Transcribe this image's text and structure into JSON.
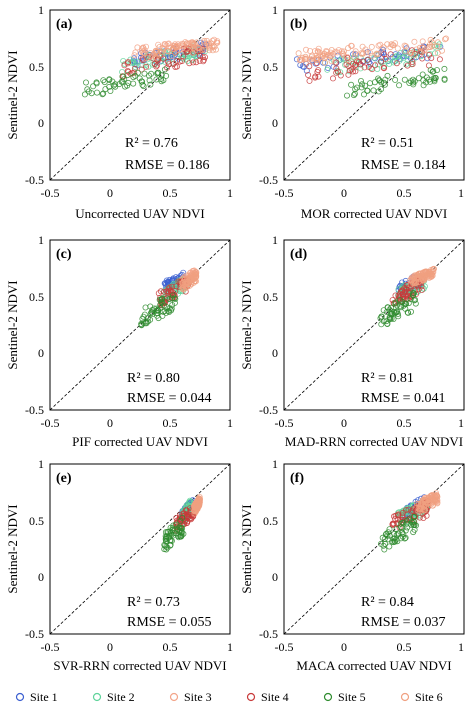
{
  "axes": {
    "ylabel": "Sentinel-2 NDVI",
    "xlim": [
      -0.5,
      1
    ],
    "ylim": [
      -0.5,
      1
    ],
    "xticks": [
      {
        "v": -0.5,
        "t": "-0.5"
      },
      {
        "v": 0,
        "t": "0"
      },
      {
        "v": 0.5,
        "t": "0.5"
      },
      {
        "v": 1,
        "t": "1"
      }
    ],
    "yticks": [
      {
        "v": -0.5,
        "t": "-0.5"
      },
      {
        "v": 0,
        "t": "0"
      },
      {
        "v": 0.5,
        "t": "0.5"
      },
      {
        "v": 1,
        "t": "1"
      }
    ],
    "one_to_one_line": true
  },
  "legend": {
    "placement": "bottom",
    "entries": [
      {
        "label": "Site 1",
        "color": "#3b5fd0"
      },
      {
        "label": "Site 2",
        "color": "#5fd39a"
      },
      {
        "label": "Site 3",
        "color": "#f3a58a"
      },
      {
        "label": "Site 4",
        "color": "#c83a3a"
      },
      {
        "label": "Site 5",
        "color": "#2e8b2e"
      },
      {
        "label": "Site 6",
        "color": "#f0a080"
      }
    ]
  },
  "chart_data": [
    {
      "type": "scatter",
      "panel_label": "(a)",
      "xlabel": "Uncorrected UAV NDVI",
      "ylabel": "Sentinel-2 NDVI",
      "r2_text": "R² = 0.76",
      "rmse_text": "RMSE = 0.186",
      "series": [
        {
          "name": "Site 1",
          "x": [
            0.2,
            0.8
          ],
          "y": [
            0.5,
            0.72
          ]
        },
        {
          "name": "Site 2",
          "x": [
            0.1,
            0.8
          ],
          "y": [
            0.45,
            0.7
          ]
        },
        {
          "name": "Site 3",
          "x": [
            0.2,
            0.9
          ],
          "y": [
            0.6,
            0.75
          ]
        },
        {
          "name": "Site 4",
          "x": [
            0.1,
            0.8
          ],
          "y": [
            0.4,
            0.7
          ]
        },
        {
          "name": "Site 5",
          "x": [
            -0.25,
            0.5
          ],
          "y": [
            0.22,
            0.5
          ]
        },
        {
          "name": "Site 6",
          "x": [
            0.25,
            0.9
          ],
          "y": [
            0.55,
            0.75
          ]
        }
      ]
    },
    {
      "type": "scatter",
      "panel_label": "(b)",
      "xlabel": "MOR corrected UAV NDVI",
      "ylabel": "Sentinel-2 NDVI",
      "r2_text": "R² = 0.51",
      "rmse_text": "RMSE = 0.184",
      "series": [
        {
          "name": "Site 1",
          "x": [
            -0.4,
            0.85
          ],
          "y": [
            0.45,
            0.72
          ]
        },
        {
          "name": "Site 2",
          "x": [
            -0.2,
            0.8
          ],
          "y": [
            0.4,
            0.7
          ]
        },
        {
          "name": "Site 3",
          "x": [
            -0.4,
            0.85
          ],
          "y": [
            0.55,
            0.75
          ]
        },
        {
          "name": "Site 4",
          "x": [
            -0.3,
            0.8
          ],
          "y": [
            0.35,
            0.7
          ]
        },
        {
          "name": "Site 5",
          "x": [
            0.0,
            0.85
          ],
          "y": [
            0.22,
            0.5
          ]
        },
        {
          "name": "Site 6",
          "x": [
            -0.4,
            0.85
          ],
          "y": [
            0.5,
            0.75
          ]
        }
      ]
    },
    {
      "type": "scatter",
      "panel_label": "(c)",
      "xlabel": "PIF corrected UAV NDVI",
      "ylabel": "Sentinel-2 NDVI",
      "r2_text": "R² = 0.80",
      "rmse_text": "RMSE = 0.044",
      "series": [
        {
          "name": "Site 1",
          "x": [
            0.45,
            0.62
          ],
          "y": [
            0.55,
            0.72
          ]
        },
        {
          "name": "Site 2",
          "x": [
            0.45,
            0.65
          ],
          "y": [
            0.45,
            0.7
          ]
        },
        {
          "name": "Site 3",
          "x": [
            0.6,
            0.72
          ],
          "y": [
            0.58,
            0.75
          ]
        },
        {
          "name": "Site 4",
          "x": [
            0.4,
            0.65
          ],
          "y": [
            0.4,
            0.68
          ]
        },
        {
          "name": "Site 5",
          "x": [
            0.26,
            0.55
          ],
          "y": [
            0.22,
            0.55
          ]
        },
        {
          "name": "Site 6",
          "x": [
            0.6,
            0.72
          ],
          "y": [
            0.55,
            0.72
          ]
        }
      ]
    },
    {
      "type": "scatter",
      "panel_label": "(d)",
      "xlabel": "MAD-RRN corrected UAV NDVI",
      "ylabel": "Sentinel-2 NDVI",
      "r2_text": "R² = 0.81",
      "rmse_text": "RMSE = 0.041",
      "series": [
        {
          "name": "Site 1",
          "x": [
            0.45,
            0.65
          ],
          "y": [
            0.5,
            0.72
          ]
        },
        {
          "name": "Site 2",
          "x": [
            0.45,
            0.68
          ],
          "y": [
            0.45,
            0.7
          ]
        },
        {
          "name": "Site 3",
          "x": [
            0.55,
            0.75
          ],
          "y": [
            0.6,
            0.75
          ]
        },
        {
          "name": "Site 4",
          "x": [
            0.4,
            0.65
          ],
          "y": [
            0.4,
            0.68
          ]
        },
        {
          "name": "Site 5",
          "x": [
            0.3,
            0.6
          ],
          "y": [
            0.22,
            0.55
          ]
        },
        {
          "name": "Site 6",
          "x": [
            0.55,
            0.75
          ],
          "y": [
            0.6,
            0.75
          ]
        }
      ]
    },
    {
      "type": "scatter",
      "panel_label": "(e)",
      "xlabel": "SVR-RRN corrected UAV NDVI",
      "ylabel": "Sentinel-2 NDVI",
      "r2_text": "R² = 0.73",
      "rmse_text": "RMSE = 0.055",
      "series": [
        {
          "name": "Site 1",
          "x": [
            0.6,
            0.7
          ],
          "y": [
            0.5,
            0.7
          ]
        },
        {
          "name": "Site 2",
          "x": [
            0.6,
            0.68
          ],
          "y": [
            0.45,
            0.7
          ]
        },
        {
          "name": "Site 3",
          "x": [
            0.7,
            0.75
          ],
          "y": [
            0.55,
            0.72
          ]
        },
        {
          "name": "Site 4",
          "x": [
            0.55,
            0.7
          ],
          "y": [
            0.4,
            0.65
          ]
        },
        {
          "name": "Site 5",
          "x": [
            0.45,
            0.62
          ],
          "y": [
            0.22,
            0.55
          ]
        },
        {
          "name": "Site 6",
          "x": [
            0.7,
            0.75
          ],
          "y": [
            0.55,
            0.72
          ]
        }
      ]
    },
    {
      "type": "scatter",
      "panel_label": "(f)",
      "xlabel": "MACA corrected UAV NDVI",
      "ylabel": "Sentinel-2 NDVI",
      "r2_text": "R² = 0.84",
      "rmse_text": "RMSE = 0.037",
      "series": [
        {
          "name": "Site 1",
          "x": [
            0.5,
            0.68
          ],
          "y": [
            0.5,
            0.72
          ]
        },
        {
          "name": "Site 2",
          "x": [
            0.45,
            0.7
          ],
          "y": [
            0.45,
            0.7
          ]
        },
        {
          "name": "Site 3",
          "x": [
            0.6,
            0.78
          ],
          "y": [
            0.6,
            0.75
          ]
        },
        {
          "name": "Site 4",
          "x": [
            0.4,
            0.7
          ],
          "y": [
            0.4,
            0.68
          ]
        },
        {
          "name": "Site 5",
          "x": [
            0.3,
            0.6
          ],
          "y": [
            0.22,
            0.55
          ]
        },
        {
          "name": "Site 6",
          "x": [
            0.6,
            0.78
          ],
          "y": [
            0.55,
            0.75
          ]
        }
      ]
    }
  ]
}
